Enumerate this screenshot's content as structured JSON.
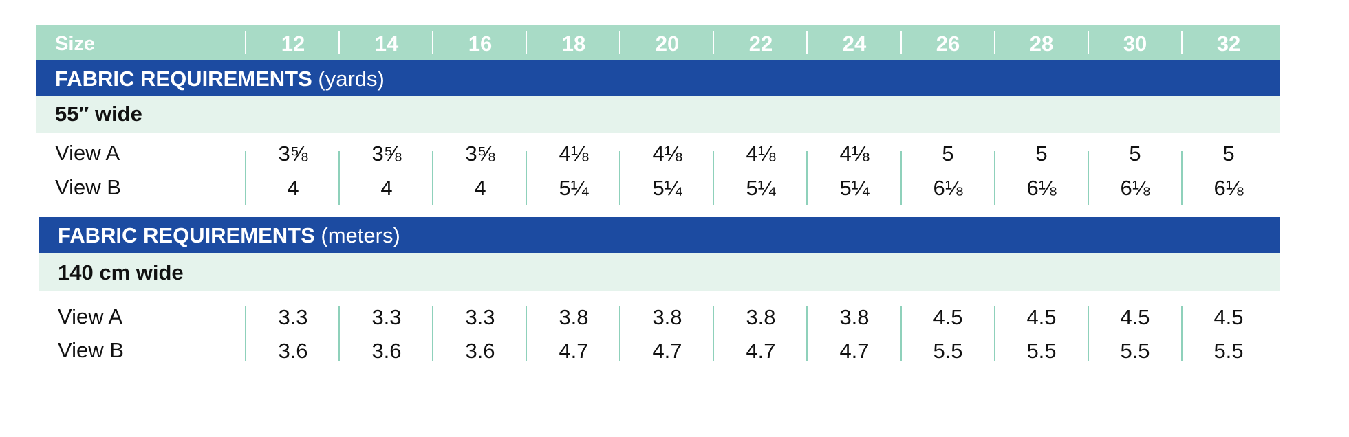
{
  "size_header": {
    "label": "Size",
    "sizes": [
      "12",
      "14",
      "16",
      "18",
      "20",
      "22",
      "24",
      "26",
      "28",
      "30",
      "32"
    ]
  },
  "yards_section": {
    "title_bold": "FABRIC REQUIREMENTS",
    "title_unit": "(yards)",
    "width_label": "55″ wide",
    "rows": [
      {
        "label": "View A",
        "values": [
          "3⅝",
          "3⅝",
          "3⅝",
          "4⅛",
          "4⅛",
          "4⅛",
          "4⅛",
          "5",
          "5",
          "5",
          "5"
        ]
      },
      {
        "label": "View B",
        "values": [
          "4",
          "4",
          "4",
          "5¼",
          "5¼",
          "5¼",
          "5¼",
          "6⅛",
          "6⅛",
          "6⅛",
          "6⅛"
        ]
      }
    ]
  },
  "meters_section": {
    "title_bold": "FABRIC REQUIREMENTS",
    "title_unit": "(meters)",
    "width_label": "140 cm wide",
    "rows": [
      {
        "label": "View A",
        "values": [
          "3.3",
          "3.3",
          "3.3",
          "3.8",
          "3.8",
          "3.8",
          "3.8",
          "4.5",
          "4.5",
          "4.5",
          "4.5"
        ]
      },
      {
        "label": "View B",
        "values": [
          "3.6",
          "3.6",
          "3.6",
          "4.7",
          "4.7",
          "4.7",
          "4.7",
          "5.5",
          "5.5",
          "5.5",
          "5.5"
        ]
      }
    ]
  },
  "colors": {
    "header_mint": "#a8dbc6",
    "band_blue": "#1c4ba1",
    "width_row_tint": "#e5f3ec",
    "divider_teal": "#8fd1bb"
  }
}
